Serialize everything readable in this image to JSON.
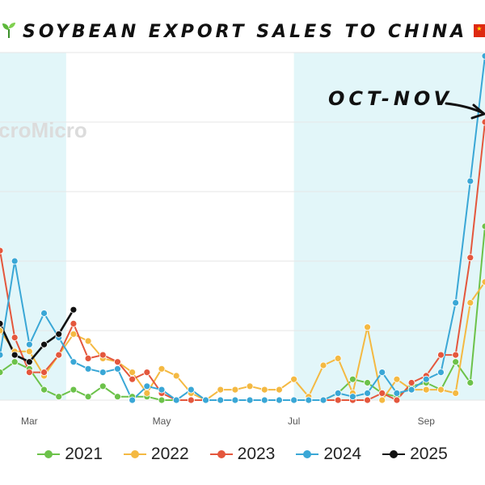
{
  "title": "SOYBEAN EXPORT SALES TO CHINA",
  "annotation": "OCT-NOV",
  "watermark": "croMicro",
  "chart_data": {
    "type": "line",
    "title": "SOYBEAN EXPORT SALES TO CHINA",
    "x_tick_labels": [
      "Mar",
      "May",
      "Jul",
      "Sep"
    ],
    "x_tick_weeks": [
      9,
      18,
      27,
      36
    ],
    "x_range_weeks": [
      7,
      40
    ],
    "y_range": [
      0,
      100
    ],
    "grid": true,
    "legend_position": "bottom",
    "shaded_ranges_weeks": [
      [
        7,
        11.5
      ],
      [
        27,
        40
      ]
    ],
    "series": [
      {
        "name": "2021",
        "color": "#6cc24a",
        "x": [
          7,
          8,
          9,
          10,
          11,
          12,
          13,
          14,
          15,
          16,
          17,
          18,
          19,
          20,
          21,
          22,
          23,
          24,
          25,
          26,
          27,
          28,
          29,
          30,
          31,
          32,
          33,
          34,
          35,
          36,
          37,
          38,
          39,
          40
        ],
        "y": [
          8,
          11,
          9,
          3,
          1,
          3,
          1,
          4,
          1,
          1,
          1,
          0,
          0,
          0,
          0,
          0,
          0,
          0,
          0,
          0,
          0,
          0,
          0,
          2,
          6,
          5,
          2,
          1,
          4,
          5,
          3,
          11,
          5,
          50
        ]
      },
      {
        "name": "2022",
        "color": "#f4b942",
        "x": [
          7,
          8,
          9,
          10,
          11,
          12,
          13,
          14,
          15,
          16,
          17,
          18,
          19,
          20,
          21,
          22,
          23,
          24,
          25,
          26,
          27,
          28,
          29,
          30,
          31,
          32,
          33,
          34,
          35,
          36,
          37,
          38,
          39,
          40
        ],
        "y": [
          20,
          14,
          14,
          7,
          13,
          19,
          17,
          12,
          11,
          8,
          2,
          9,
          7,
          2,
          0,
          3,
          3,
          4,
          3,
          3,
          6,
          1,
          10,
          12,
          2,
          21,
          0,
          6,
          3,
          3,
          3,
          2,
          28,
          34
        ]
      },
      {
        "name": "2023",
        "color": "#e4573d",
        "x": [
          7,
          8,
          9,
          10,
          11,
          12,
          13,
          14,
          15,
          16,
          17,
          18,
          19,
          20,
          21,
          22,
          23,
          24,
          25,
          26,
          27,
          28,
          29,
          30,
          31,
          32,
          33,
          34,
          35,
          36,
          37,
          38,
          39,
          40
        ],
        "y": [
          43,
          18,
          8,
          8,
          13,
          22,
          12,
          13,
          11,
          6,
          8,
          2,
          0,
          0,
          0,
          0,
          0,
          0,
          0,
          0,
          0,
          0,
          0,
          0,
          0,
          0,
          2,
          0,
          5,
          7,
          13,
          13,
          41,
          80
        ]
      },
      {
        "name": "2024",
        "color": "#3aa7d6",
        "x": [
          7,
          8,
          9,
          10,
          11,
          12,
          13,
          14,
          15,
          16,
          17,
          18,
          19,
          20,
          21,
          22,
          23,
          24,
          25,
          26,
          27,
          28,
          29,
          30,
          31,
          32,
          33,
          34,
          35,
          36,
          37,
          38,
          39,
          40
        ],
        "y": [
          13,
          40,
          16,
          25,
          18,
          11,
          9,
          8,
          9,
          0,
          4,
          3,
          0,
          3,
          0,
          0,
          0,
          0,
          0,
          0,
          0,
          0,
          0,
          2,
          1,
          2,
          8,
          2,
          3,
          6,
          8,
          28,
          63,
          99
        ]
      },
      {
        "name": "2025",
        "color": "#111111",
        "x": [
          7,
          8,
          9,
          10,
          11,
          12
        ],
        "y": [
          22,
          13,
          11,
          16,
          19,
          26
        ]
      }
    ]
  }
}
